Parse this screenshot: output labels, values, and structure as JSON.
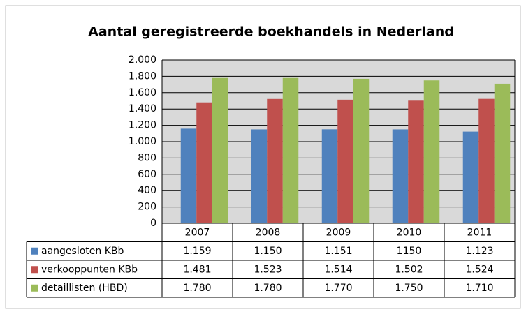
{
  "chart_data": {
    "type": "bar",
    "title": "Aantal  geregistreerde boekhandels in Nederland",
    "categories": [
      "2007",
      "2008",
      "2009",
      "2010",
      "2011"
    ],
    "series": [
      {
        "name": "aangesloten KBb",
        "color": "#4f81bd",
        "values": [
          1159,
          1150,
          1151,
          1150,
          1123
        ],
        "value_labels": [
          "1.159",
          "1.150",
          "1.151",
          "1150",
          "1.123"
        ]
      },
      {
        "name": "verkooppunten KBb",
        "color": "#c0504d",
        "values": [
          1481,
          1523,
          1514,
          1502,
          1524
        ],
        "value_labels": [
          "1.481",
          "1.523",
          "1.514",
          "1.502",
          "1.524"
        ]
      },
      {
        "name": "detaillisten (HBD)",
        "color": "#9bbb59",
        "values": [
          1780,
          1780,
          1770,
          1750,
          1710
        ],
        "value_labels": [
          "1.780",
          "1.780",
          "1.770",
          "1.750",
          "1.710"
        ]
      }
    ],
    "ylim": [
      0,
      2000
    ],
    "yticks": [
      0,
      200,
      400,
      600,
      800,
      {
        "value": 1000,
        "label": "1.000"
      },
      {
        "value": 1200,
        "label": "1.200"
      },
      {
        "value": 1400,
        "label": "1.400"
      },
      {
        "value": 1600,
        "label": "1.600"
      },
      {
        "value": 1800,
        "label": "1.800"
      },
      {
        "value": 2000,
        "label": "2.000"
      }
    ],
    "grid": true
  }
}
